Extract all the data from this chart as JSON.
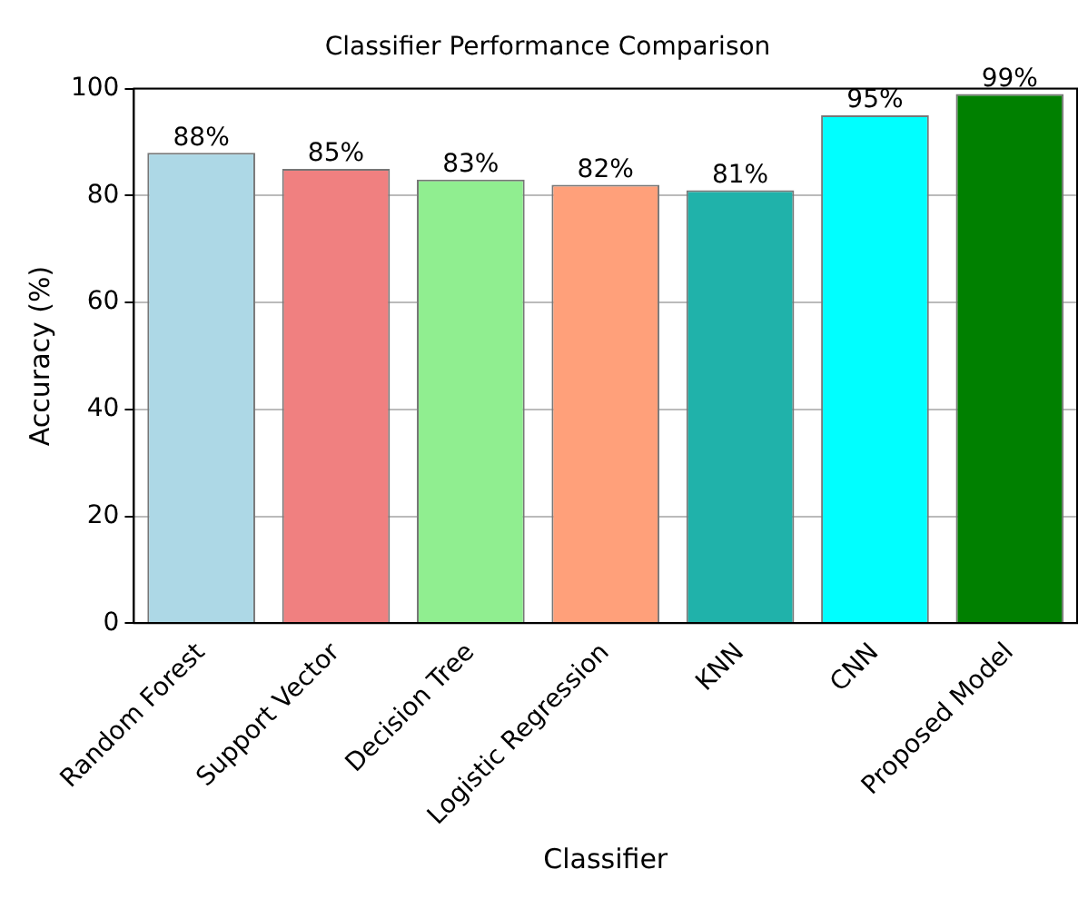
{
  "chart_data": {
    "type": "bar",
    "title": "Classifier Performance Comparison",
    "xlabel": "Classifier",
    "ylabel": "Accuracy (%)",
    "categories": [
      "Random Forest",
      "Support Vector",
      "Decision Tree",
      "Logistic Regression",
      "KNN",
      "CNN",
      "Proposed Model"
    ],
    "values": [
      88,
      85,
      83,
      82,
      81,
      95,
      99
    ],
    "value_labels": [
      "88%",
      "85%",
      "83%",
      "82%",
      "81%",
      "95%",
      "99%"
    ],
    "colors": [
      "#add8e6",
      "#f08080",
      "#90ee90",
      "#ffa07a",
      "#20b2aa",
      "#00ffff",
      "#008000"
    ],
    "ylim": [
      0,
      100
    ],
    "yticks": [
      0,
      20,
      40,
      60,
      80,
      100
    ],
    "grid": "y",
    "legend": false
  }
}
